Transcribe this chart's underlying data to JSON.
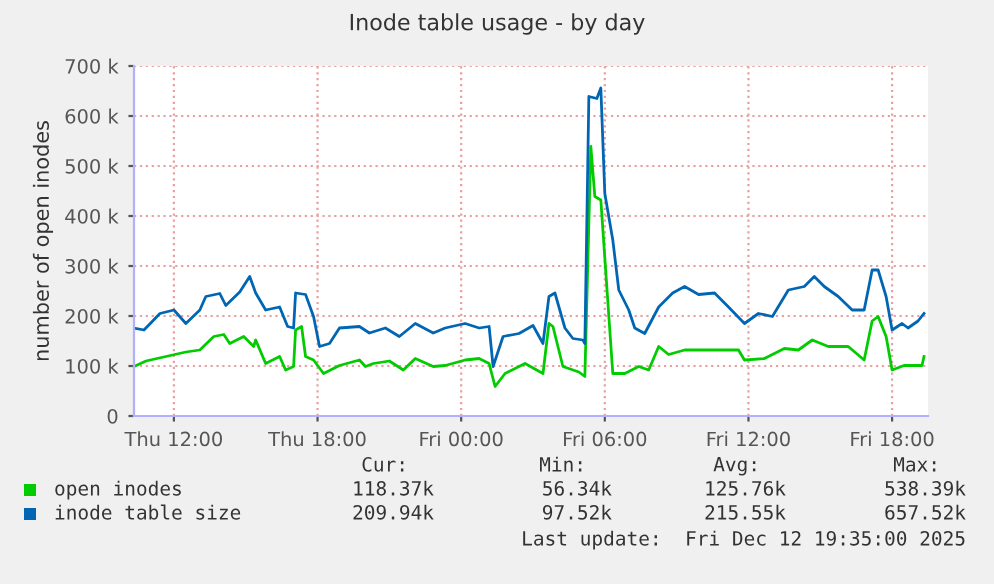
{
  "chart_data": {
    "type": "line",
    "title": "Inode table usage - by day",
    "ylabel": "number of open inodes",
    "xlim": [
      "2025-12-11T10:20",
      "2025-12-12T19:30"
    ],
    "ylim": [
      0,
      700000
    ],
    "xticks": [
      {
        "value": "2025-12-11T12:00",
        "label": "Thu 12:00"
      },
      {
        "value": "2025-12-11T18:00",
        "label": "Thu 18:00"
      },
      {
        "value": "2025-12-12T00:00",
        "label": "Fri 00:00"
      },
      {
        "value": "2025-12-12T06:00",
        "label": "Fri 06:00"
      },
      {
        "value": "2025-12-12T12:00",
        "label": "Fri 12:00"
      },
      {
        "value": "2025-12-12T18:00",
        "label": "Fri 18:00"
      }
    ],
    "yticks": [
      0,
      {
        "value": 100000,
        "label": "100 k"
      },
      {
        "value": 200000,
        "label": "200 k"
      },
      {
        "value": 300000,
        "label": "300 k"
      },
      {
        "value": 400000,
        "label": "400 k"
      },
      {
        "value": 500000,
        "label": "500 k"
      },
      {
        "value": 600000,
        "label": "600 k"
      },
      {
        "value": 700000,
        "label": "700 k"
      }
    ],
    "grid": true,
    "legend": "bottom left",
    "marker": "none",
    "line_style": "solid",
    "series": [
      {
        "name": "open inodes",
        "color": "#00cc00",
        "x": [
          "2025-12-11T10:20",
          "2025-12-11T10:50",
          "2025-12-11T11:40",
          "2025-12-11T12:30",
          "2025-12-11T13:05",
          "2025-12-11T13:40",
          "2025-12-11T14:05",
          "2025-12-11T14:20",
          "2025-12-11T14:55",
          "2025-12-11T15:20",
          "2025-12-11T15:25",
          "2025-12-11T15:50",
          "2025-12-11T16:25",
          "2025-12-11T16:40",
          "2025-12-11T17:00",
          "2025-12-11T17:05",
          "2025-12-11T17:20",
          "2025-12-11T17:30",
          "2025-12-11T17:50",
          "2025-12-11T18:15",
          "2025-12-11T18:55",
          "2025-12-11T19:45",
          "2025-12-11T20:00",
          "2025-12-11T20:20",
          "2025-12-11T21:00",
          "2025-12-11T21:35",
          "2025-12-11T22:05",
          "2025-12-11T22:50",
          "2025-12-11T23:20",
          "2025-12-12T00:10",
          "2025-12-12T00:45",
          "2025-12-12T01:10",
          "2025-12-12T01:25",
          "2025-12-12T01:50",
          "2025-12-12T02:40",
          "2025-12-12T03:25",
          "2025-12-12T03:40",
          "2025-12-12T03:50",
          "2025-12-12T04:15",
          "2025-12-12T04:55",
          "2025-12-12T05:10",
          "2025-12-12T05:25",
          "2025-12-12T05:35",
          "2025-12-12T05:50",
          "2025-12-12T06:20",
          "2025-12-12T06:50",
          "2025-12-12T07:25",
          "2025-12-12T07:50",
          "2025-12-12T08:15",
          "2025-12-12T08:40",
          "2025-12-12T09:20",
          "2025-12-12T10:30",
          "2025-12-12T11:35",
          "2025-12-12T11:50",
          "2025-12-12T12:40",
          "2025-12-12T13:30",
          "2025-12-12T14:05",
          "2025-12-12T14:40",
          "2025-12-12T15:20",
          "2025-12-12T16:10",
          "2025-12-12T16:50",
          "2025-12-12T17:10",
          "2025-12-12T17:25",
          "2025-12-12T17:45",
          "2025-12-12T18:00",
          "2025-12-12T18:30",
          "2025-12-12T19:15",
          "2025-12-12T19:20"
        ],
        "values": [
          99000,
          110000,
          119000,
          128000,
          132000,
          159000,
          163000,
          145000,
          159000,
          139000,
          152000,
          105000,
          119000,
          92000,
          99000,
          172000,
          179000,
          119000,
          112000,
          85000,
          101000,
          112000,
          99000,
          105000,
          110000,
          92000,
          115000,
          99000,
          101000,
          112000,
          115000,
          105000,
          59000,
          85000,
          105000,
          85000,
          185000,
          179000,
          99000,
          88000,
          79000,
          539000,
          439000,
          432000,
          85000,
          85000,
          99000,
          92000,
          139000,
          123000,
          132000,
          132000,
          132000,
          112000,
          115000,
          135000,
          132000,
          152000,
          139000,
          139000,
          112000,
          190000,
          199000,
          159000,
          92000,
          101000,
          101000,
          119000
        ]
      },
      {
        "name": "inode table size",
        "color": "#0066b3",
        "x": [
          "2025-12-11T10:20",
          "2025-12-11T10:45",
          "2025-12-11T11:25",
          "2025-12-11T12:00",
          "2025-12-11T12:30",
          "2025-12-11T13:05",
          "2025-12-11T13:20",
          "2025-12-11T13:55",
          "2025-12-11T14:10",
          "2025-12-11T14:45",
          "2025-12-11T15:10",
          "2025-12-11T15:25",
          "2025-12-11T15:50",
          "2025-12-11T16:25",
          "2025-12-11T16:45",
          "2025-12-11T17:00",
          "2025-12-11T17:05",
          "2025-12-11T17:30",
          "2025-12-11T17:50",
          "2025-12-11T18:05",
          "2025-12-11T18:30",
          "2025-12-11T18:55",
          "2025-12-11T19:45",
          "2025-12-11T20:10",
          "2025-12-11T20:50",
          "2025-12-11T21:25",
          "2025-12-11T22:05",
          "2025-12-11T22:50",
          "2025-12-11T23:20",
          "2025-12-12T00:10",
          "2025-12-12T00:45",
          "2025-12-12T01:10",
          "2025-12-12T01:20",
          "2025-12-12T01:45",
          "2025-12-12T02:25",
          "2025-12-12T03:00",
          "2025-12-12T03:25",
          "2025-12-12T03:40",
          "2025-12-12T03:55",
          "2025-12-12T04:20",
          "2025-12-12T04:40",
          "2025-12-12T05:05",
          "2025-12-12T05:10",
          "2025-12-12T05:20",
          "2025-12-12T05:40",
          "2025-12-12T05:50",
          "2025-12-12T06:00",
          "2025-12-12T06:20",
          "2025-12-12T06:35",
          "2025-12-12T07:00",
          "2025-12-12T07:15",
          "2025-12-12T07:40",
          "2025-12-12T08:15",
          "2025-12-12T08:50",
          "2025-12-12T09:20",
          "2025-12-12T09:55",
          "2025-12-12T10:35",
          "2025-12-12T11:10",
          "2025-12-12T11:50",
          "2025-12-12T12:25",
          "2025-12-12T13:00",
          "2025-12-12T13:40",
          "2025-12-12T14:20",
          "2025-12-12T14:45",
          "2025-12-12T15:10",
          "2025-12-12T15:45",
          "2025-12-12T16:20",
          "2025-12-12T16:50",
          "2025-12-12T17:10",
          "2025-12-12T17:25",
          "2025-12-12T17:45",
          "2025-12-12T18:00",
          "2025-12-12T18:25",
          "2025-12-12T18:40",
          "2025-12-12T19:05",
          "2025-12-12T19:20"
        ],
        "values": [
          176000,
          172000,
          205000,
          212000,
          185000,
          212000,
          239000,
          245000,
          221000,
          248000,
          279000,
          246000,
          212000,
          218000,
          179000,
          176000,
          246000,
          243000,
          199000,
          139000,
          145000,
          176000,
          179000,
          166000,
          176000,
          159000,
          185000,
          166000,
          176000,
          185000,
          176000,
          179000,
          99000,
          159000,
          165000,
          181000,
          145000,
          239000,
          246000,
          176000,
          155000,
          152000,
          145000,
          639000,
          635000,
          656000,
          445000,
          352000,
          252000,
          212000,
          176000,
          165000,
          218000,
          246000,
          259000,
          243000,
          246000,
          218000,
          185000,
          205000,
          199000,
          252000,
          259000,
          279000,
          259000,
          239000,
          212000,
          212000,
          292000,
          292000,
          239000,
          172000,
          185000,
          176000,
          190000,
          205000
        ]
      }
    ],
    "annotations": [
      "Cur:",
      "Min:",
      "Avg:",
      "Max:",
      "118.37k",
      "56.34k",
      "125.76k",
      "538.39k",
      "209.94k",
      "97.52k",
      "215.55k",
      "657.52k",
      "Last update:  Fri Dec 12 19:35:00 2025"
    ]
  }
}
